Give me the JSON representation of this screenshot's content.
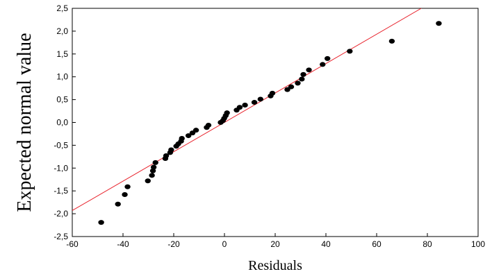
{
  "chart_data": {
    "type": "scatter",
    "title": "",
    "xlabel": "Residuals",
    "ylabel": "Expected normal value",
    "xlim": [
      -60,
      100
    ],
    "ylim": [
      -2.5,
      2.5
    ],
    "xticks": [
      -60,
      -40,
      -20,
      0,
      20,
      40,
      60,
      80,
      100
    ],
    "xtick_labels": [
      "-60",
      "-40",
      "-20",
      "0",
      "20",
      "40",
      "60",
      "80",
      "100"
    ],
    "yticks": [
      -2.5,
      -2.0,
      -1.5,
      -1.0,
      -0.5,
      0.0,
      0.5,
      1.0,
      1.5,
      2.0,
      2.5
    ],
    "ytick_labels": [
      "-2,5",
      "-2,0",
      "-1,5",
      "-1,0",
      "-0,5",
      "0,0",
      "0,5",
      "1,0",
      "1,5",
      "2,0",
      "2,5"
    ],
    "grid": false,
    "point_color": "#000000",
    "line_color": "#e8202a",
    "reference_line": {
      "x": [
        -60,
        77.6
      ],
      "y": [
        -1.93,
        2.5
      ]
    },
    "points": [
      {
        "x": -48.6,
        "y": -2.19
      },
      {
        "x": -42.0,
        "y": -1.79
      },
      {
        "x": -39.3,
        "y": -1.58
      },
      {
        "x": -38.2,
        "y": -1.41
      },
      {
        "x": -30.2,
        "y": -1.28
      },
      {
        "x": -28.6,
        "y": -1.16
      },
      {
        "x": -28.2,
        "y": -1.06
      },
      {
        "x": -27.9,
        "y": -0.98
      },
      {
        "x": -27.2,
        "y": -0.88
      },
      {
        "x": -23.3,
        "y": -0.79
      },
      {
        "x": -23.0,
        "y": -0.73
      },
      {
        "x": -21.4,
        "y": -0.66
      },
      {
        "x": -21.0,
        "y": -0.6
      },
      {
        "x": -19.0,
        "y": -0.52
      },
      {
        "x": -18.2,
        "y": -0.47
      },
      {
        "x": -17.1,
        "y": -0.41
      },
      {
        "x": -16.8,
        "y": -0.35
      },
      {
        "x": -14.2,
        "y": -0.29
      },
      {
        "x": -12.6,
        "y": -0.23
      },
      {
        "x": -11.2,
        "y": -0.17
      },
      {
        "x": -7.0,
        "y": -0.11
      },
      {
        "x": -6.3,
        "y": -0.06
      },
      {
        "x": -1.5,
        "y": 0.0
      },
      {
        "x": -0.6,
        "y": 0.04
      },
      {
        "x": -0.1,
        "y": 0.09
      },
      {
        "x": 0.5,
        "y": 0.15
      },
      {
        "x": 1.0,
        "y": 0.21
      },
      {
        "x": 4.8,
        "y": 0.27
      },
      {
        "x": 6.0,
        "y": 0.33
      },
      {
        "x": 8.1,
        "y": 0.38
      },
      {
        "x": 11.8,
        "y": 0.44
      },
      {
        "x": 14.2,
        "y": 0.51
      },
      {
        "x": 18.2,
        "y": 0.58
      },
      {
        "x": 18.9,
        "y": 0.64
      },
      {
        "x": 24.8,
        "y": 0.72
      },
      {
        "x": 26.3,
        "y": 0.78
      },
      {
        "x": 28.9,
        "y": 0.86
      },
      {
        "x": 30.5,
        "y": 0.95
      },
      {
        "x": 31.1,
        "y": 1.05
      },
      {
        "x": 33.3,
        "y": 1.15
      },
      {
        "x": 38.7,
        "y": 1.27
      },
      {
        "x": 40.6,
        "y": 1.4
      },
      {
        "x": 49.4,
        "y": 1.56
      },
      {
        "x": 66.0,
        "y": 1.78
      },
      {
        "x": 84.5,
        "y": 2.17
      }
    ]
  }
}
